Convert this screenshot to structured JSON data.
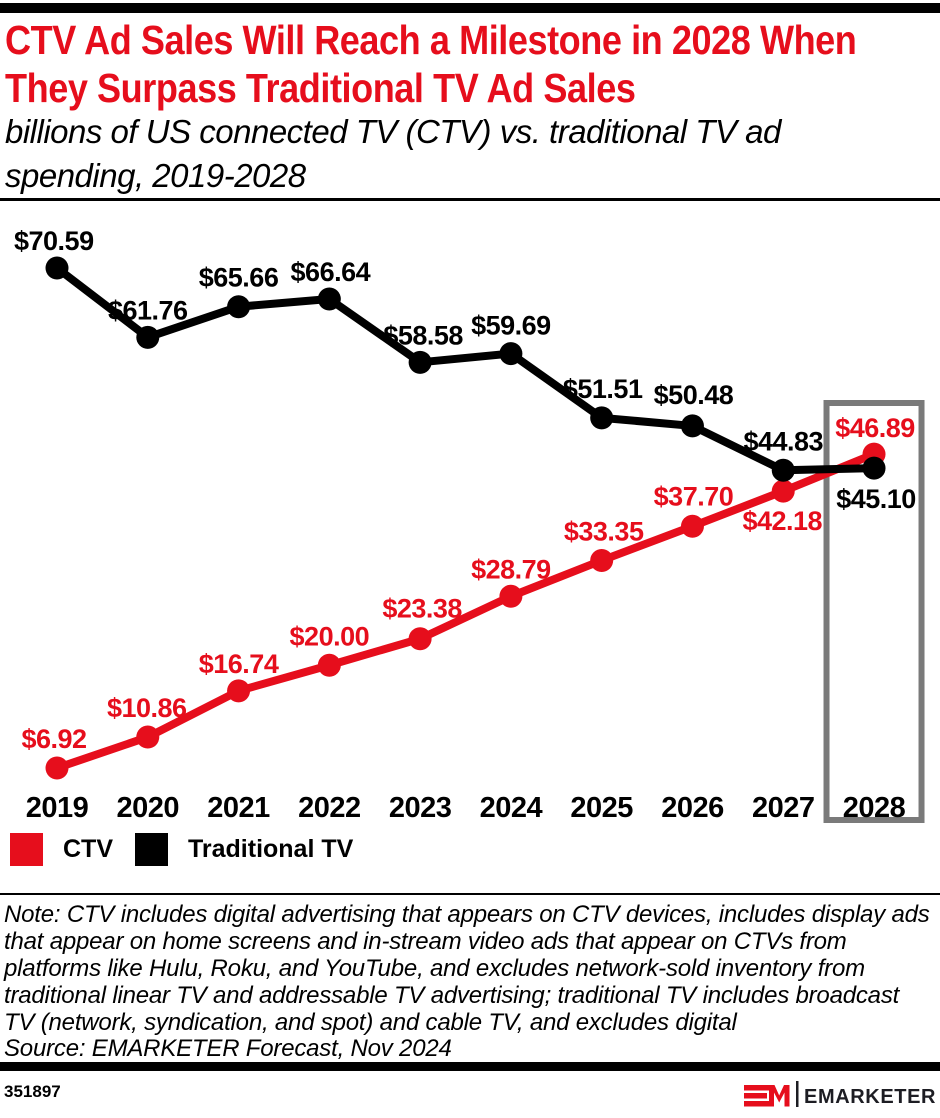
{
  "colors": {
    "accent_red": "#E60E1C",
    "series_black": "#000000",
    "highlight_box_gray": "#7A7A7A",
    "logo_dark": "#1D1D23"
  },
  "header": {
    "title": "CTV Ad Sales Will Reach a Milestone in 2028 When\nThey Surpass Traditional TV Ad Sales",
    "subtitle": "billions of US connected TV (CTV) vs. traditional TV ad\nspending, 2019-2028"
  },
  "chart_data": {
    "type": "line",
    "title": "CTV Ad Sales Will Reach a Milestone in 2028 When They Surpass Traditional TV Ad Sales",
    "subtitle": "billions of US connected TV (CTV) vs. traditional TV ad spending, 2019-2028",
    "categories": [
      "2019",
      "2020",
      "2021",
      "2022",
      "2023",
      "2024",
      "2025",
      "2026",
      "2027",
      "2028"
    ],
    "series": [
      {
        "id": "ctv",
        "name": "CTV",
        "color": "#E60E1C",
        "values": [
          6.92,
          10.86,
          16.74,
          20.0,
          23.38,
          28.79,
          33.35,
          37.7,
          42.18,
          46.89
        ],
        "labels": [
          "$6.92",
          "$10.86",
          "$16.74",
          "$20.00",
          "$23.38",
          "$28.79",
          "$33.35",
          "$37.70",
          "$42.18",
          "$46.89"
        ],
        "label_offsets": [
          [
            -3,
            -20
          ],
          [
            -1,
            -20
          ],
          [
            0,
            -18
          ],
          [
            0,
            -20
          ],
          [
            2,
            -21
          ],
          [
            0,
            -18
          ],
          [
            2,
            -20
          ],
          [
            1,
            -21
          ],
          [
            -1,
            39
          ],
          [
            1,
            -17
          ]
        ]
      },
      {
        "id": "traditional-tv",
        "name": "Traditional TV",
        "color": "#000000",
        "values": [
          70.59,
          61.76,
          65.66,
          66.64,
          58.58,
          59.69,
          51.51,
          50.48,
          44.83,
          45.1
        ],
        "labels": [
          "$70.59",
          "$61.76",
          "$65.66",
          "$66.64",
          "$58.58",
          "$59.69",
          "$51.51",
          "$50.48",
          "$44.83",
          "$45.10"
        ],
        "label_offsets": [
          [
            -43,
            -18,
            "start"
          ],
          [
            0,
            -18
          ],
          [
            0,
            -20
          ],
          [
            1,
            -18
          ],
          [
            3,
            -18
          ],
          [
            0,
            -19
          ],
          [
            1,
            -20
          ],
          [
            1,
            -22
          ],
          [
            0,
            -20
          ],
          [
            2,
            40
          ]
        ]
      }
    ],
    "units": "billions of US dollars",
    "ylim": [
      0,
      80
    ],
    "grid": false,
    "y_axis_visible": false,
    "legend_position": "bottom-left",
    "highlight_category": "2028",
    "highlight_color": "#7A7A7A"
  },
  "legend": {
    "items": [
      {
        "label": "CTV",
        "color": "#E60E1C"
      },
      {
        "label": "Traditional TV",
        "color": "#000000"
      }
    ]
  },
  "footnote": {
    "note": "Note: CTV includes digital advertising that appears on CTV devices, includes display ads\nthat appear on home screens and in-stream video ads that appear on CTVs from\nplatforms like Hulu, Roku, and YouTube, and excludes network-sold inventory from\ntraditional linear TV and addressable TV advertising; traditional TV includes broadcast\nTV (network, syndication, and spot) and cable TV, and excludes digital",
    "source": "Source: EMARKETER Forecast, Nov 2024"
  },
  "footer": {
    "chart_number": "351897",
    "brand": "EMARKETER"
  }
}
